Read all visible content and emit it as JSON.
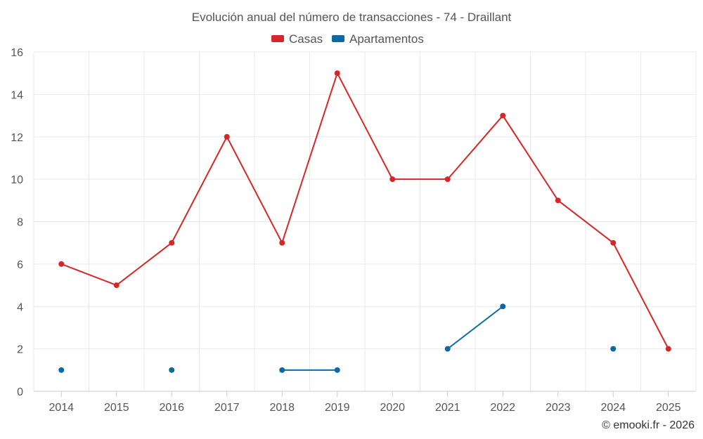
{
  "chart_data": {
    "type": "line",
    "title": "Evolución anual del número de transacciones - 74 - Draillant",
    "categories": [
      "2014",
      "2015",
      "2016",
      "2017",
      "2018",
      "2019",
      "2020",
      "2021",
      "2022",
      "2023",
      "2024",
      "2025"
    ],
    "series": [
      {
        "name": "Casas",
        "color": "#d62728",
        "values": [
          6,
          5,
          7,
          12,
          7,
          15,
          10,
          10,
          13,
          9,
          7,
          2
        ]
      },
      {
        "name": "Apartamentos",
        "color": "#0a6aa1",
        "values": [
          1,
          null,
          1,
          null,
          1,
          1,
          null,
          2,
          4,
          null,
          2,
          null
        ]
      }
    ],
    "ylim": [
      0,
      16
    ],
    "yticks": [
      "0",
      "2",
      "4",
      "6",
      "8",
      "10",
      "12",
      "14",
      "16"
    ],
    "xlabel": "",
    "ylabel": "",
    "legend": "top-center",
    "grid": true
  },
  "credit": "© emooki.fr - 2026"
}
